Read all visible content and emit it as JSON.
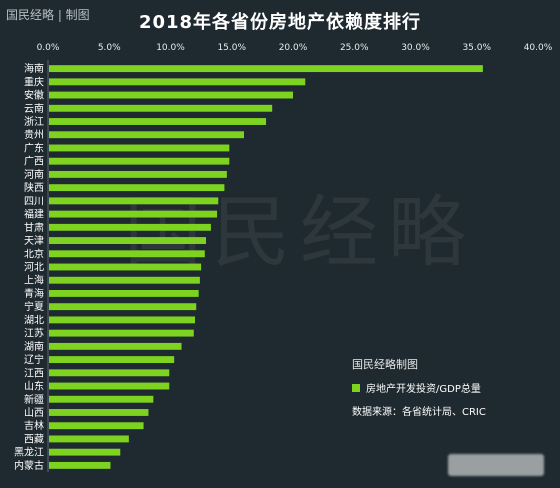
{
  "brand": "国民经略 | 制图",
  "watermark": "国民经略",
  "legend": {
    "title": "国民经略制图",
    "series_label": "房地产开发投资/GDP总量",
    "source": "数据来源：各省统计局、CRIC"
  },
  "colors": {
    "bar": "#7ed321",
    "background": "#1f2a30",
    "grid": "#3a474e"
  },
  "chart_data": {
    "type": "bar",
    "orientation": "horizontal",
    "title": "2018年各省份房地产依赖度排行",
    "xlim": [
      0,
      40
    ],
    "xticks": [
      "0.0%",
      "5.0%",
      "10.0%",
      "15.0%",
      "20.0%",
      "25.0%",
      "30.0%",
      "35.0%",
      "40.0%"
    ],
    "xtick_values": [
      0,
      5,
      10,
      15,
      20,
      25,
      30,
      35,
      40
    ],
    "x_position": "top",
    "grid": false,
    "legend_position": "bottom-right",
    "categories": [
      "海南",
      "重庆",
      "安徽",
      "云南",
      "浙江",
      "贵州",
      "广东",
      "广西",
      "河南",
      "陕西",
      "四川",
      "福建",
      "甘肃",
      "天津",
      "北京",
      "河北",
      "上海",
      "青海",
      "宁夏",
      "湖北",
      "江苏",
      "湖南",
      "辽宁",
      "江西",
      "山东",
      "新疆",
      "山西",
      "吉林",
      "西藏",
      "黑龙江",
      "内蒙古"
    ],
    "values": [
      35.5,
      21.0,
      20.0,
      18.3,
      17.8,
      16.0,
      14.8,
      14.8,
      14.6,
      14.4,
      13.9,
      13.8,
      13.3,
      12.9,
      12.8,
      12.5,
      12.4,
      12.3,
      12.1,
      12.0,
      11.9,
      10.9,
      10.3,
      9.9,
      9.9,
      8.6,
      8.2,
      7.8,
      6.6,
      5.9,
      5.1
    ]
  }
}
